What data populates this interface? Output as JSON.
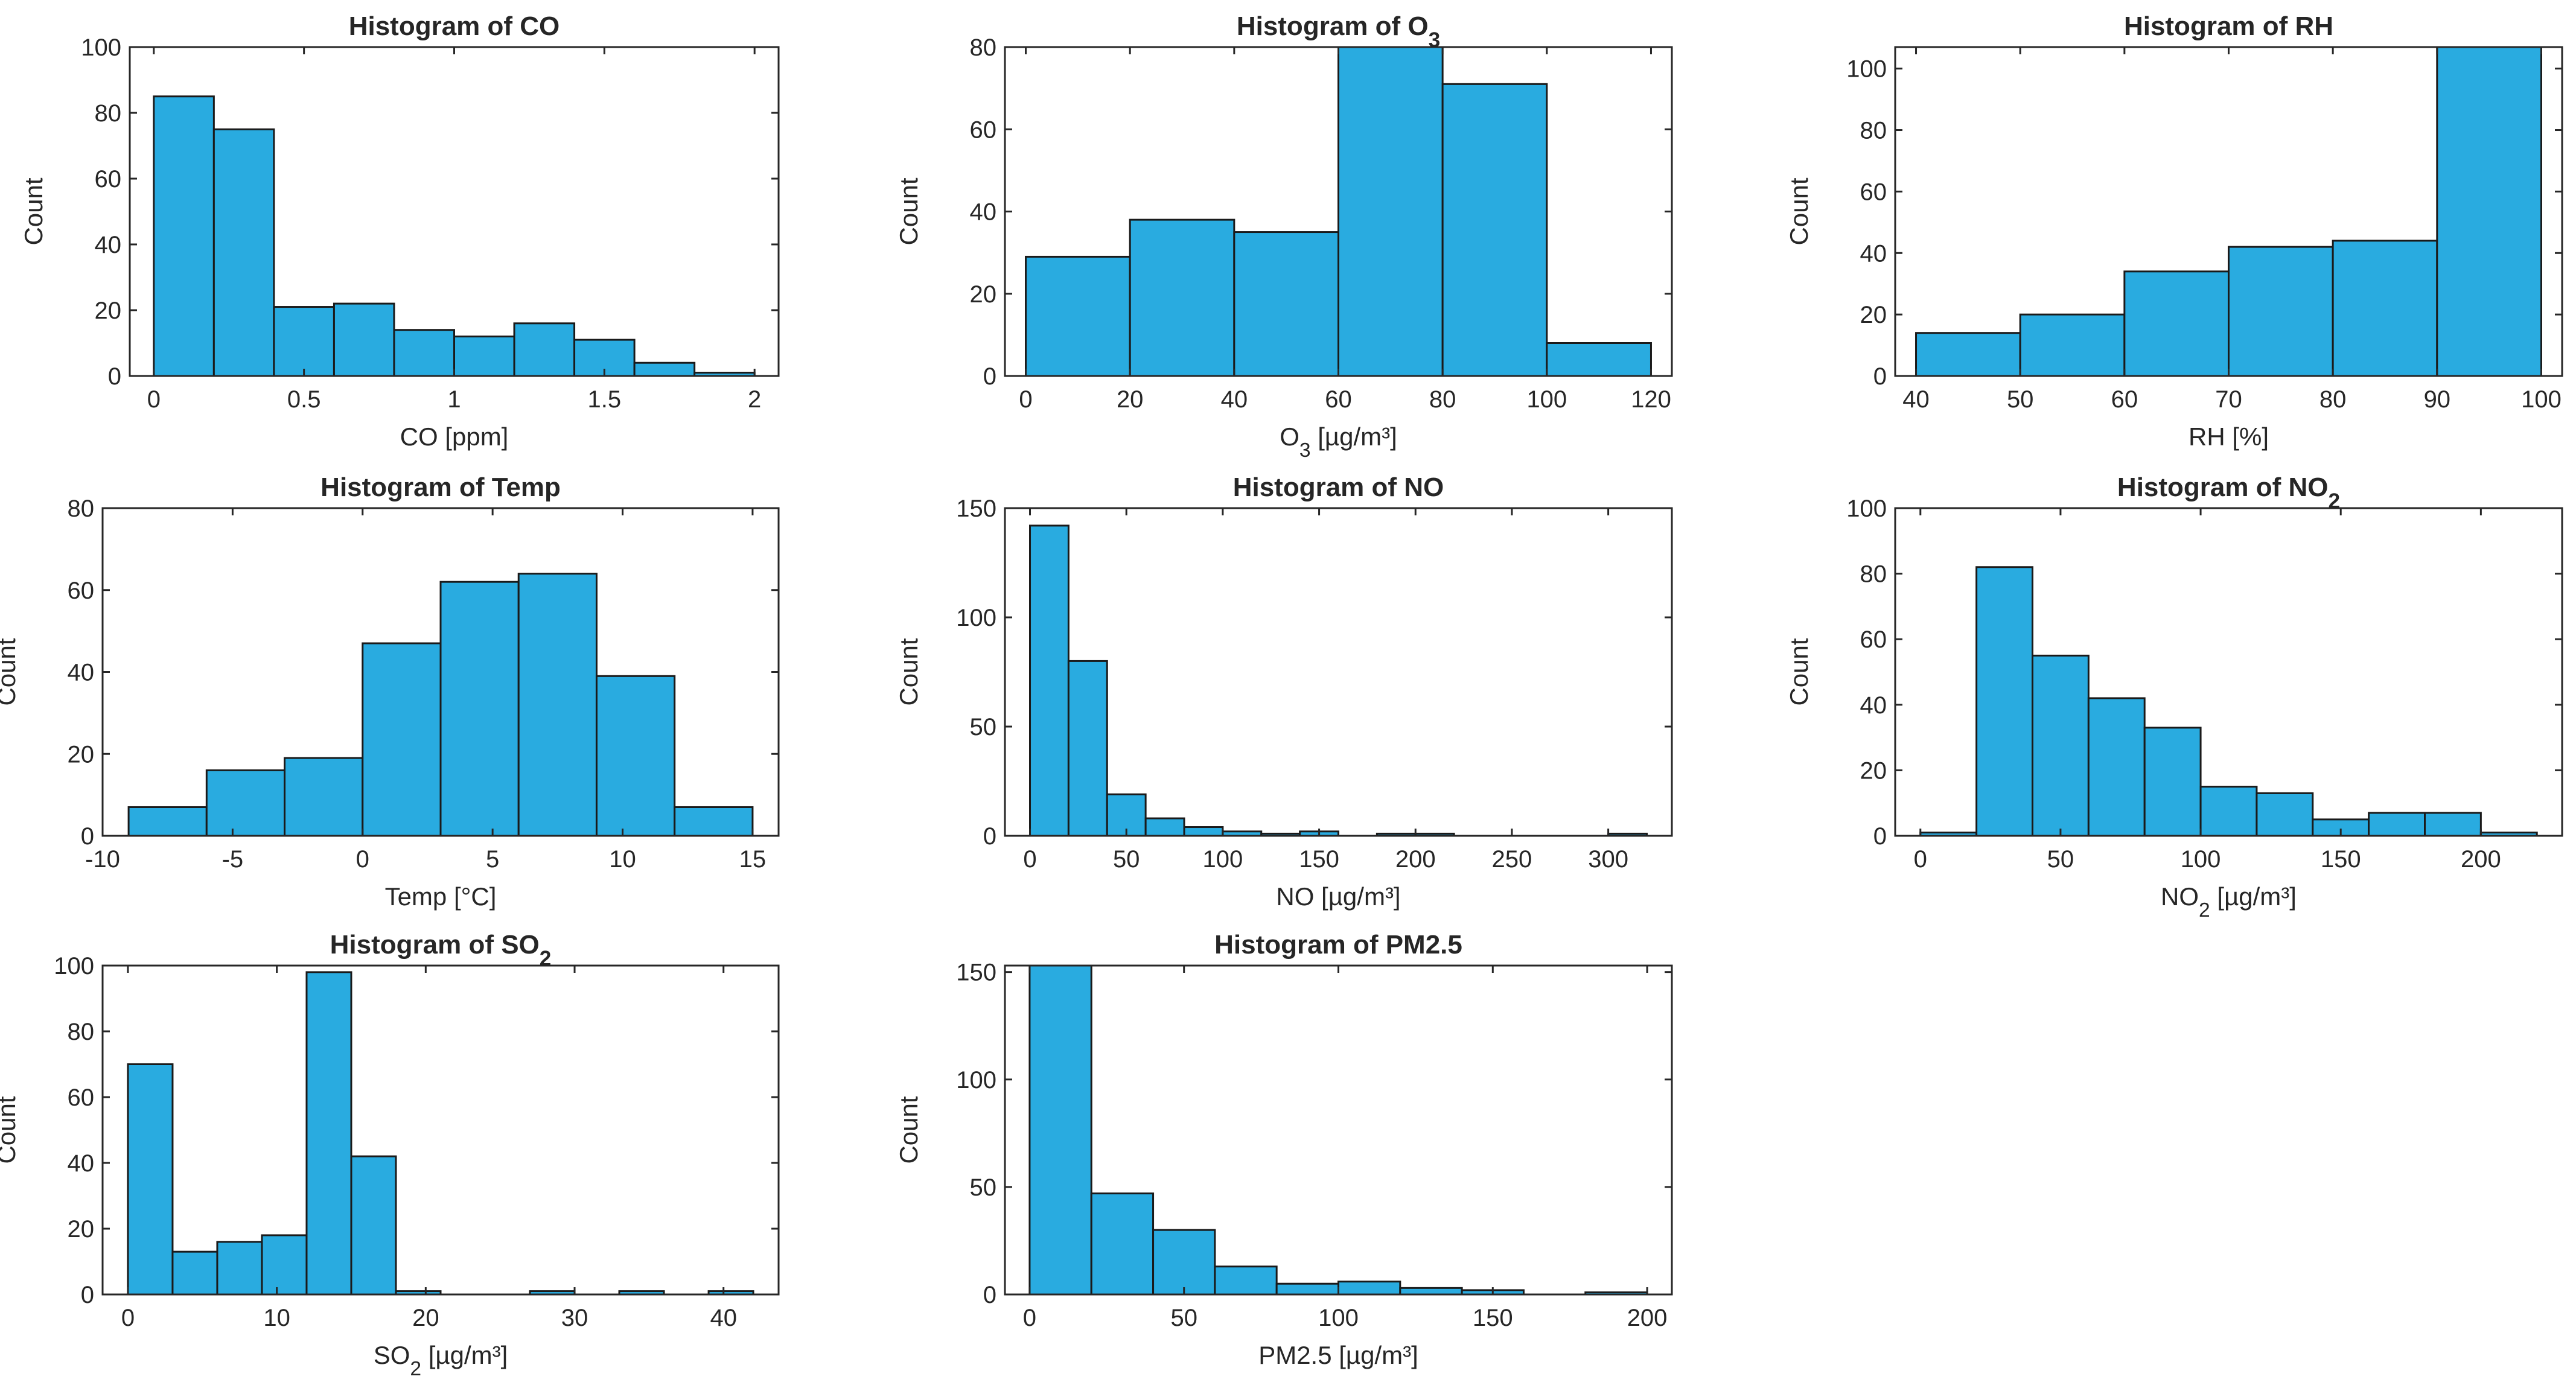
{
  "chart_data": [
    {
      "type": "bar",
      "title": "Histogram of CO",
      "xlabel": "CO [ppm]",
      "ylabel": "Count",
      "bin_edges": [
        0,
        0.2,
        0.4,
        0.6,
        0.8,
        1.0,
        1.2,
        1.4,
        1.6,
        1.8,
        2.0
      ],
      "values": [
        85,
        75,
        21,
        22,
        14,
        12,
        16,
        11,
        4,
        1
      ],
      "xlim": [
        -0.08,
        2.08
      ],
      "ylim": [
        0,
        100
      ],
      "xticks": [
        0,
        0.5,
        1,
        1.5,
        2
      ],
      "xtick_labels": [
        "0",
        "0.5",
        "1",
        "1.5",
        "2"
      ],
      "yticks": [
        0,
        20,
        40,
        60,
        80,
        100
      ],
      "ytick_labels": [
        "0",
        "20",
        "40",
        "60",
        "80",
        "100"
      ],
      "bar_color": "#29abe0"
    },
    {
      "type": "bar",
      "title": "Histogram of O3",
      "xlabel": "O3 [µg/m³]",
      "ylabel": "Count",
      "bin_edges": [
        0,
        20,
        40,
        60,
        80,
        100,
        120
      ],
      "values": [
        29,
        38,
        35,
        80,
        71,
        8
      ],
      "xlim": [
        -4,
        124
      ],
      "ylim": [
        0,
        80
      ],
      "xticks": [
        0,
        20,
        40,
        60,
        80,
        100,
        120
      ],
      "xtick_labels": [
        "0",
        "20",
        "40",
        "60",
        "80",
        "100",
        "120"
      ],
      "yticks": [
        0,
        20,
        40,
        60,
        80
      ],
      "ytick_labels": [
        "0",
        "20",
        "40",
        "60",
        "80"
      ],
      "bar_color": "#29abe0"
    },
    {
      "type": "bar",
      "title": "Histogram of RH",
      "xlabel": "RH [%]",
      "ylabel": "Count",
      "bin_edges": [
        40,
        50,
        60,
        70,
        80,
        90,
        100
      ],
      "values": [
        14,
        20,
        34,
        42,
        44,
        107
      ],
      "xlim": [
        38,
        102
      ],
      "ylim": [
        0,
        107
      ],
      "xticks": [
        40,
        50,
        60,
        70,
        80,
        90,
        100
      ],
      "xtick_labels": [
        "40",
        "50",
        "60",
        "70",
        "80",
        "90",
        "100"
      ],
      "yticks": [
        0,
        20,
        40,
        60,
        80,
        100
      ],
      "ytick_labels": [
        "0",
        "20",
        "40",
        "60",
        "80",
        "100"
      ],
      "bar_color": "#29abe0"
    },
    {
      "type": "bar",
      "title": "Histogram of Temp",
      "xlabel": "Temp [°C]",
      "ylabel": "Count",
      "bin_edges": [
        -9,
        -6,
        -3,
        0,
        3,
        6,
        9,
        12,
        15
      ],
      "values": [
        7,
        16,
        19,
        47,
        62,
        64,
        39,
        7
      ],
      "xlim": [
        -10,
        16
      ],
      "ylim": [
        0,
        80
      ],
      "xticks": [
        -10,
        -5,
        0,
        5,
        10,
        15
      ],
      "xtick_labels": [
        "-10",
        "-5",
        "0",
        "5",
        "10",
        "15"
      ],
      "yticks": [
        0,
        20,
        40,
        60,
        80
      ],
      "ytick_labels": [
        "0",
        "20",
        "40",
        "60",
        "80"
      ],
      "bar_color": "#29abe0"
    },
    {
      "type": "bar",
      "title": "Histogram of NO",
      "xlabel": "NO [µg/m³]",
      "ylabel": "Count",
      "bin_edges": [
        0,
        20,
        40,
        60,
        80,
        100,
        120,
        140,
        160,
        180,
        200,
        220,
        240,
        260,
        280,
        300,
        320
      ],
      "values": [
        142,
        80,
        19,
        8,
        4,
        2,
        1,
        2,
        0,
        1,
        1,
        0,
        0,
        0,
        0,
        1
      ],
      "xlim": [
        -13,
        333
      ],
      "ylim": [
        0,
        150
      ],
      "xticks": [
        0,
        50,
        100,
        150,
        200,
        250,
        300
      ],
      "xtick_labels": [
        "0",
        "50",
        "100",
        "150",
        "200",
        "250",
        "300"
      ],
      "yticks": [
        0,
        50,
        100,
        150
      ],
      "ytick_labels": [
        "0",
        "50",
        "100",
        "150"
      ],
      "bar_color": "#29abe0"
    },
    {
      "type": "bar",
      "title": "Histogram of NO2",
      "xlabel": "NO2 [µg/m³]",
      "ylabel": "Count",
      "bin_edges": [
        0,
        20,
        40,
        60,
        80,
        100,
        120,
        140,
        160,
        180,
        200,
        220
      ],
      "values": [
        1,
        82,
        55,
        42,
        33,
        15,
        13,
        5,
        7,
        7,
        1
      ],
      "xlim": [
        -9,
        229
      ],
      "ylim": [
        0,
        100
      ],
      "xticks": [
        0,
        50,
        100,
        150,
        200
      ],
      "xtick_labels": [
        "0",
        "50",
        "100",
        "150",
        "200"
      ],
      "yticks": [
        0,
        20,
        40,
        60,
        80,
        100
      ],
      "ytick_labels": [
        "0",
        "20",
        "40",
        "60",
        "80",
        "100"
      ],
      "bar_color": "#29abe0"
    },
    {
      "type": "bar",
      "title": "Histogram of SO2",
      "xlabel": "SO2 [µg/m³]",
      "ylabel": "Count",
      "bin_edges": [
        0,
        3,
        6,
        9,
        12,
        15,
        18,
        21,
        24,
        27,
        30,
        33,
        36,
        39,
        42
      ],
      "values": [
        70,
        13,
        16,
        18,
        98,
        42,
        1,
        0,
        0,
        1,
        0,
        1,
        0,
        1
      ],
      "xlim": [
        -1.7,
        43.7
      ],
      "ylim": [
        0,
        100
      ],
      "xticks": [
        0,
        10,
        20,
        30,
        40
      ],
      "xtick_labels": [
        "0",
        "10",
        "20",
        "30",
        "40"
      ],
      "yticks": [
        0,
        20,
        40,
        60,
        80,
        100
      ],
      "ytick_labels": [
        "0",
        "20",
        "40",
        "60",
        "80",
        "100"
      ],
      "bar_color": "#29abe0"
    },
    {
      "type": "bar",
      "title": "Histogram of PM2.5",
      "xlabel": "PM2.5 [µg/m³]",
      "ylabel": "Count",
      "bin_edges": [
        0,
        20,
        40,
        60,
        80,
        100,
        120,
        140,
        160,
        180,
        200
      ],
      "values": [
        153,
        47,
        30,
        13,
        5,
        6,
        3,
        2,
        0,
        1
      ],
      "xlim": [
        -8,
        208
      ],
      "ylim": [
        0,
        153
      ],
      "xticks": [
        0,
        50,
        100,
        150,
        200
      ],
      "xtick_labels": [
        "0",
        "50",
        "100",
        "150",
        "200"
      ],
      "yticks": [
        0,
        50,
        100,
        150
      ],
      "ytick_labels": [
        "0",
        "50",
        "100",
        "150"
      ],
      "bar_color": "#29abe0"
    }
  ]
}
